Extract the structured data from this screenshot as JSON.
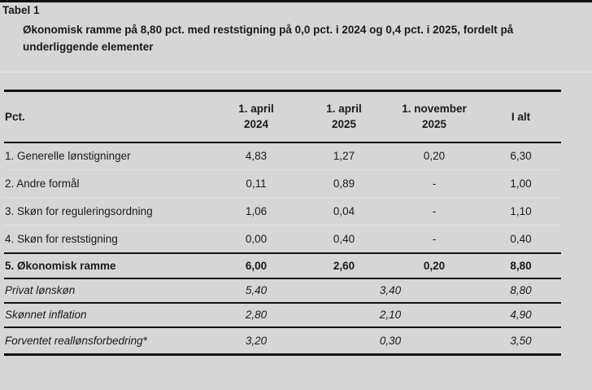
{
  "doc": {
    "label": "Tabel 1",
    "title": "Økonomisk ramme på 8,80 pct. med reststigning på 0,0 pct. i 2024 og 0,4 pct. i 2025, fordelt på underliggende elementer"
  },
  "table": {
    "headers": [
      "Pct.",
      "1. april\n2024",
      "1. april\n2025",
      "1. november\n2025",
      "I alt"
    ],
    "rows": [
      {
        "style": "normal",
        "cells": [
          "1. Generelle lønstigninger",
          "4,83",
          "1,27",
          "0,20",
          "6,30"
        ]
      },
      {
        "style": "normal",
        "cells": [
          "2. Andre formål",
          "0,11",
          "0,89",
          "-",
          "1,00"
        ]
      },
      {
        "style": "normal",
        "cells": [
          "3. Skøn for reguleringsordning",
          "1,06",
          "0,04",
          "-",
          "1,10"
        ]
      },
      {
        "style": "normal",
        "cells": [
          "4. Skøn for reststigning",
          "0,00",
          "0,40",
          "-",
          "0,40"
        ]
      },
      {
        "style": "bold-total",
        "cells": [
          "5. Økonomisk ramme",
          "6,00",
          "2,60",
          "0,20",
          "8,80"
        ]
      },
      {
        "style": "italic-span",
        "cells": [
          "Privat lønskøn",
          "5,40",
          "3,40",
          "8,80"
        ]
      },
      {
        "style": "italic-span",
        "cells": [
          "Skønnet inflation",
          "2,80",
          "2,10",
          "4,90"
        ]
      },
      {
        "style": "italic-span",
        "cells": [
          "Forventet reallønsforbedring*",
          "3,20",
          "0,30",
          "3,50"
        ]
      }
    ]
  },
  "colors": {
    "background": "#d6d6d6",
    "rule": "#141414",
    "text": "#1a1a1a",
    "light_separator": "#e2e2e2"
  },
  "chart_data": {
    "type": "table",
    "title": "Økonomisk ramme på 8,80 pct. med reststigning på 0,0 pct. i 2024 og 0,4 pct. i 2025, fordelt på underliggende elementer",
    "columns": [
      "Pct.",
      "1. april 2024",
      "1. april 2025",
      "1. november 2025",
      "I alt"
    ],
    "rows": [
      [
        "1. Generelle lønstigninger",
        4.83,
        1.27,
        0.2,
        6.3
      ],
      [
        "2. Andre formål",
        0.11,
        0.89,
        null,
        1.0
      ],
      [
        "3. Skøn for reguleringsordning",
        1.06,
        0.04,
        null,
        1.1
      ],
      [
        "4. Skøn for reststigning",
        0.0,
        0.4,
        null,
        0.4
      ],
      [
        "5. Økonomisk ramme",
        6.0,
        2.6,
        0.2,
        8.8
      ],
      [
        "Privat lønskøn",
        5.4,
        3.4,
        null,
        8.8
      ],
      [
        "Skønnet inflation",
        2.8,
        2.1,
        null,
        4.9
      ],
      [
        "Forventet reallønsforbedring*",
        3.2,
        0.3,
        null,
        3.5
      ]
    ],
    "notes": "Rows 6-8 are italic; their second value spans the two 2025 columns. Row 5 is a bold total row. Values are percentages with Danish decimal commas."
  }
}
